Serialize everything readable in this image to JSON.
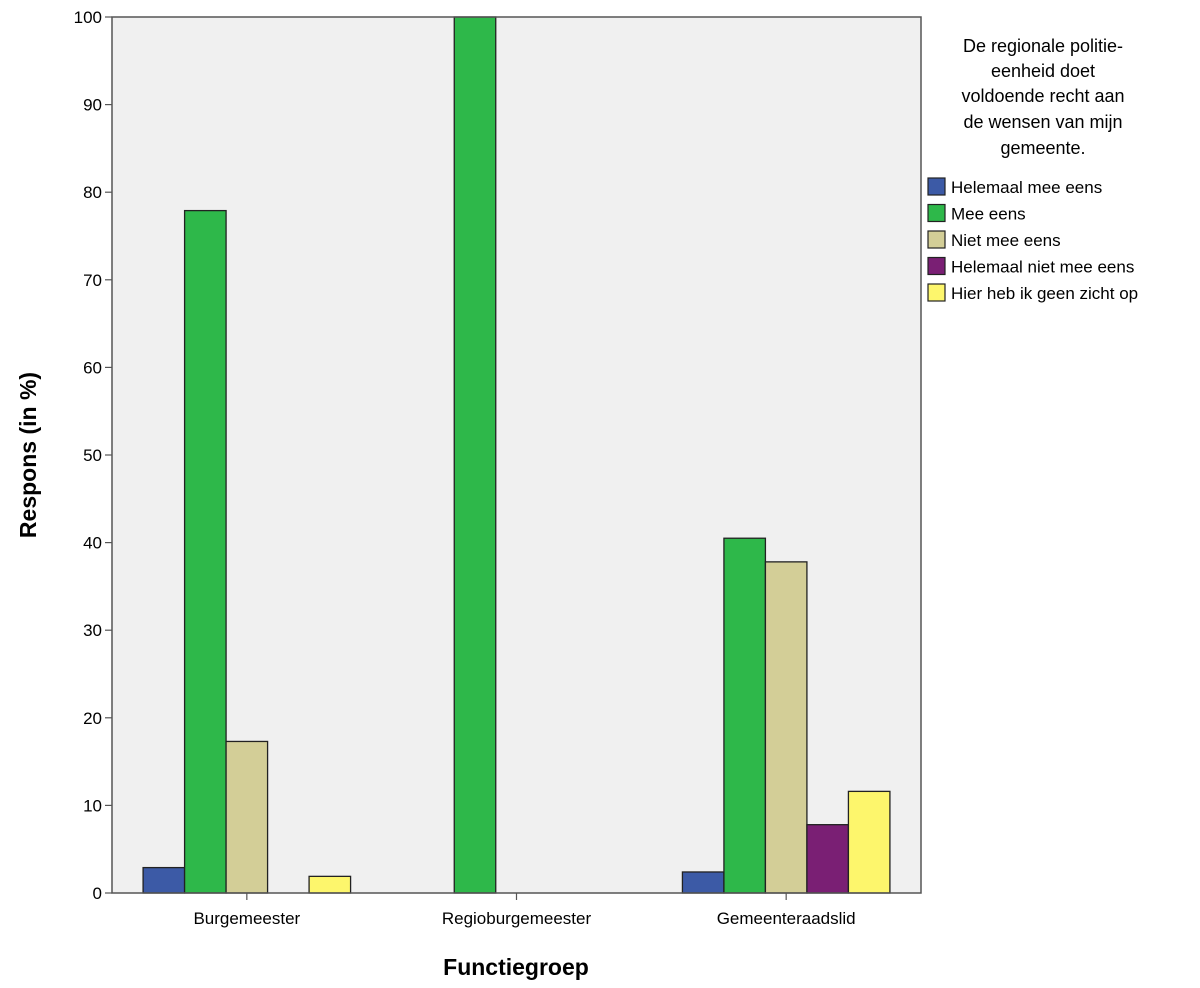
{
  "chart_data": {
    "type": "bar",
    "title": "",
    "xlabel": "Functiegroep",
    "ylabel": "Respons (in %)",
    "ylim": [
      0,
      100
    ],
    "yticks": [
      "0",
      "10",
      "20",
      "30",
      "40",
      "50",
      "60",
      "70",
      "80",
      "90",
      "100"
    ],
    "categories": [
      "Burgemeester",
      "Regioburgemeester",
      "Gemeenteraadslid"
    ],
    "legend": {
      "title_lines": [
        "De regionale politie-",
        "eenheid doet",
        "voldoende recht aan",
        "de wensen van mijn",
        "gemeente."
      ],
      "placement": "right"
    },
    "grid": false,
    "plot_background": "#f0f0f0",
    "series": [
      {
        "name": "Helemaal mee eens",
        "color": "#3c5aa6",
        "values": [
          2.9,
          0,
          2.4
        ]
      },
      {
        "name": "Mee eens",
        "color": "#2eb84a",
        "values": [
          77.9,
          100,
          40.5
        ]
      },
      {
        "name": "Niet mee eens",
        "color": "#d3ce97",
        "values": [
          17.3,
          0,
          37.8
        ]
      },
      {
        "name": "Helemaal niet mee eens",
        "color": "#7a1f74",
        "values": [
          0,
          0,
          7.8
        ]
      },
      {
        "name": "Hier heb ik geen zicht op",
        "color": "#fdf66c",
        "values": [
          1.9,
          0,
          11.6
        ]
      }
    ]
  }
}
